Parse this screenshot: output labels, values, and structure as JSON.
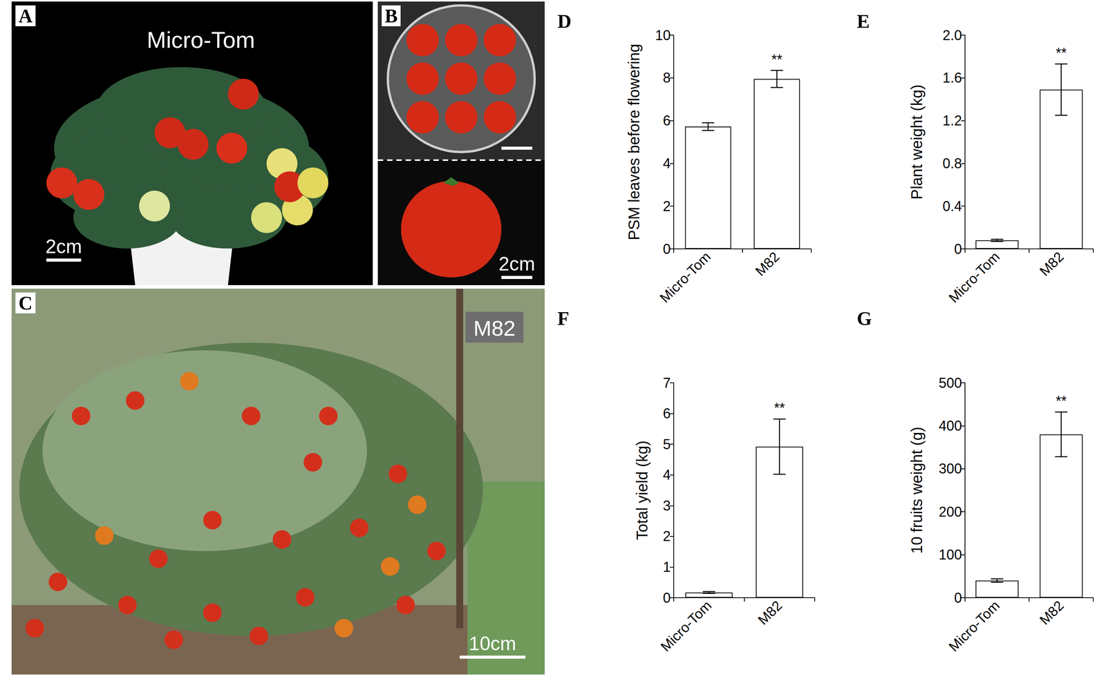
{
  "photos": [
    {
      "panel": "A",
      "caption": "Micro-Tom",
      "scale_bar": "2cm"
    },
    {
      "panel": "B",
      "scale_bar": "2cm"
    },
    {
      "panel": "C",
      "caption": "M82",
      "scale_bar": "10cm"
    }
  ],
  "chart_data": [
    {
      "panel": "D",
      "type": "bar",
      "y_label": "PSM leaves before flowering",
      "categories": [
        "Micro-Tom",
        "M82"
      ],
      "values": [
        5.72,
        7.95
      ],
      "errors": [
        0.18,
        0.4
      ],
      "significance": [
        null,
        "**"
      ],
      "color": "#ffffff",
      "ylim": [
        0,
        10
      ],
      "yticks": [
        0,
        2,
        4,
        6,
        8,
        10
      ],
      "grid": false
    },
    {
      "panel": "E",
      "type": "bar",
      "y_label": "Plant weight (kg)",
      "categories": [
        "Micro-Tom",
        "M82"
      ],
      "values": [
        0.08,
        1.49
      ],
      "errors": [
        0.01,
        0.24
      ],
      "significance": [
        null,
        "**"
      ],
      "color": "#ffffff",
      "ylim": [
        0,
        2
      ],
      "yticks": [
        0,
        0.4,
        0.8,
        1.2,
        1.6,
        {
          "value": 2,
          "label": "2.0"
        }
      ],
      "grid": false
    },
    {
      "panel": "F",
      "type": "bar",
      "y_label": "Total yield (kg)",
      "categories": [
        "Micro-Tom",
        "M82"
      ],
      "values": [
        0.17,
        4.92
      ],
      "errors": [
        0.03,
        0.9
      ],
      "significance": [
        null,
        "**"
      ],
      "color": "#ffffff",
      "ylim": [
        0,
        7
      ],
      "yticks": [
        0,
        1,
        2,
        3,
        4,
        5,
        6,
        7
      ],
      "grid": false
    },
    {
      "panel": "G",
      "type": "bar",
      "y_label": "10 fruits weight (g)",
      "categories": [
        "Micro-Tom",
        "M82"
      ],
      "values": [
        40,
        380
      ],
      "errors": [
        4,
        52
      ],
      "significance": [
        null,
        "**"
      ],
      "color": "#ffffff",
      "ylim": [
        0,
        500
      ],
      "yticks": [
        0,
        100,
        200,
        300,
        400,
        500
      ],
      "grid": false
    }
  ]
}
